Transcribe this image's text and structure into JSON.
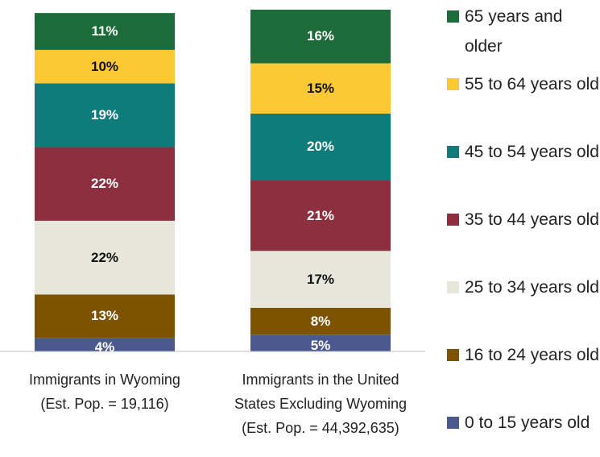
{
  "chart_data": {
    "type": "stacked_bar",
    "categories": [
      "Immigrants in Wyoming\n(Est. Pop. = 19,116)",
      "Immigrants in the United\nStates Excluding Wyoming\n(Est. Pop. = 44,392,635)"
    ],
    "series": [
      {
        "name": "0 to 15 years old",
        "color": "#4b5a8e",
        "values": [
          4,
          5
        ],
        "value_labels": [
          "4%",
          "5%"
        ]
      },
      {
        "name": "16 to 24 years old",
        "color": "#7d5300",
        "values": [
          13,
          8
        ],
        "value_labels": [
          "13%",
          "8%"
        ]
      },
      {
        "name": "25 to 34 years old",
        "color": "#e6e6da",
        "values": [
          22,
          17
        ],
        "value_labels": [
          "22%",
          "17%"
        ]
      },
      {
        "name": "35 to 44 years old",
        "color": "#8c2f3e",
        "values": [
          22,
          21
        ],
        "value_labels": [
          "22%",
          "21%"
        ]
      },
      {
        "name": "45 to 54 years old",
        "color": "#0f7c7c",
        "values": [
          19,
          20
        ],
        "value_labels": [
          "19%",
          "20%"
        ]
      },
      {
        "name": "55 to 64 years old",
        "color": "#fcc935",
        "values": [
          10,
          15
        ],
        "value_labels": [
          "10%",
          "15%"
        ]
      },
      {
        "name": "65 years and older",
        "color": "#1c6b39",
        "values": [
          11,
          16
        ],
        "value_labels": [
          "11%",
          "16%"
        ]
      }
    ],
    "legend": "right"
  }
}
